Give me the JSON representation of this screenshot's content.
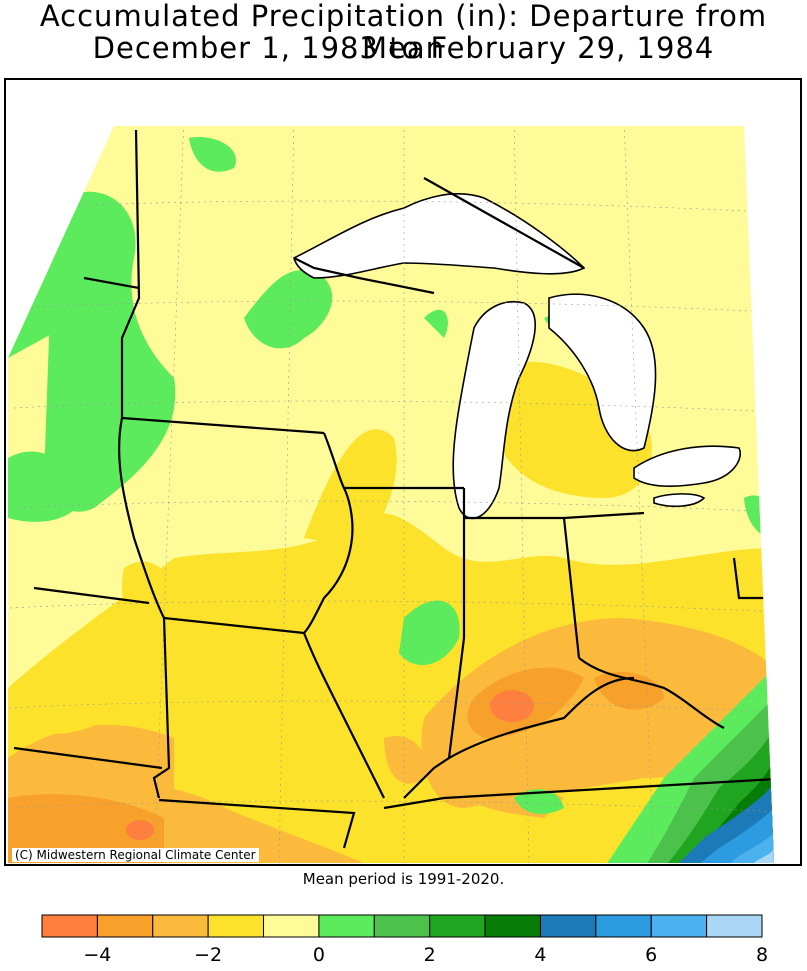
{
  "title_line1": "Accumulated Precipitation (in): Departure from Mean",
  "title_line2": "December 1, 1983 to February 29, 1984",
  "credit": "(C) Midwestern Regional Climate Center",
  "mean_period": "Mean period is 1991-2020.",
  "legend": {
    "bins": [
      {
        "from": -5,
        "to": -4,
        "color": "#ff7f3f"
      },
      {
        "from": -4,
        "to": -3,
        "color": "#f7a12b"
      },
      {
        "from": -3,
        "to": -2,
        "color": "#fcba3c"
      },
      {
        "from": -2,
        "to": -1,
        "color": "#fce22b"
      },
      {
        "from": -1,
        "to": 0,
        "color": "#fffb98"
      },
      {
        "from": 0,
        "to": 1,
        "color": "#5ceb5c"
      },
      {
        "from": 1,
        "to": 2,
        "color": "#4cc24c"
      },
      {
        "from": 2,
        "to": 3,
        "color": "#1fa51f"
      },
      {
        "from": 3,
        "to": 4,
        "color": "#077c07"
      },
      {
        "from": 4,
        "to": 5,
        "color": "#1c7ab8"
      },
      {
        "from": 5,
        "to": 6,
        "color": "#2d9be0"
      },
      {
        "from": 6,
        "to": 7,
        "color": "#4bb2ef"
      },
      {
        "from": 7,
        "to": 8,
        "color": "#a9d7f5"
      }
    ],
    "tick_labels": [
      "−4",
      "−2",
      "0",
      "2",
      "4",
      "6",
      "8"
    ]
  }
}
